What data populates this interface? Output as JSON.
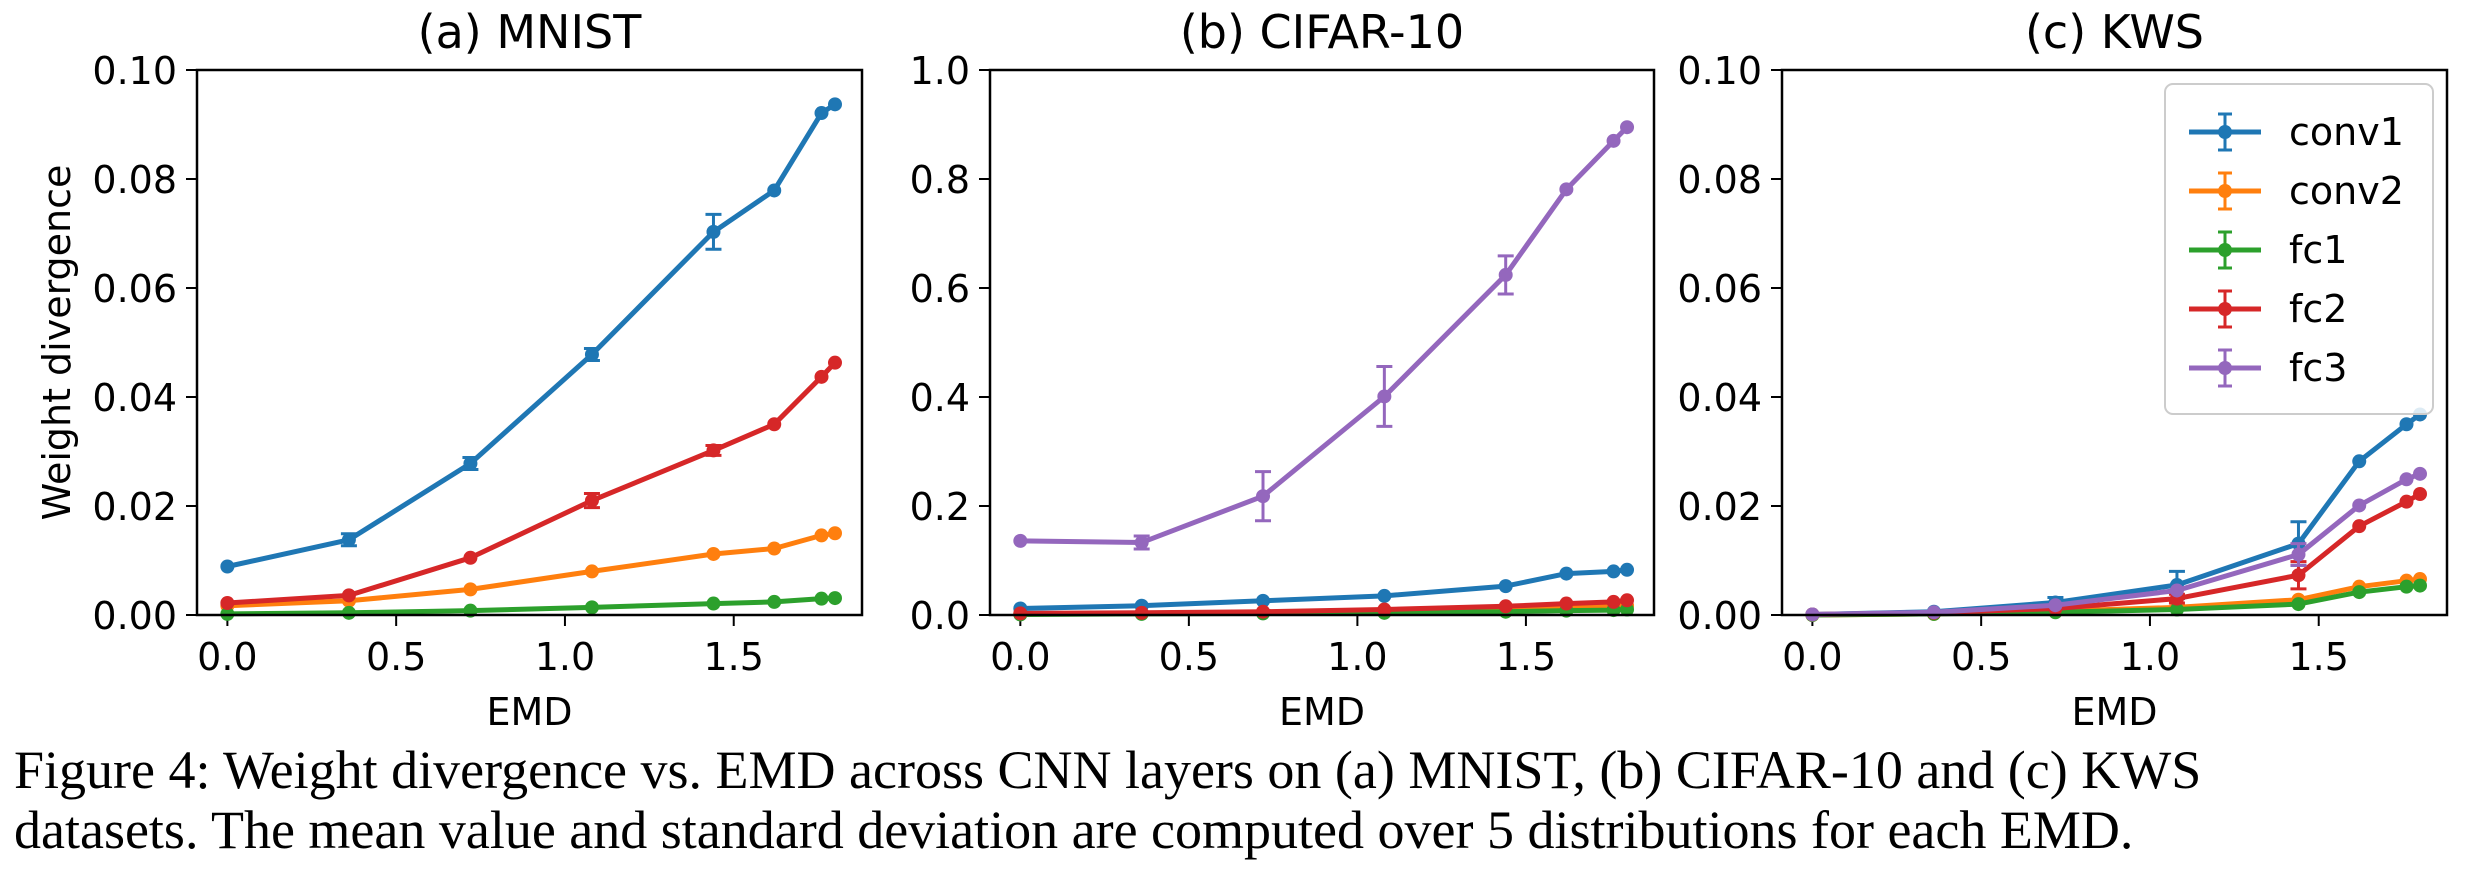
{
  "chart_data": [
    {
      "type": "line",
      "title": "(a) MNIST",
      "xlabel": "EMD",
      "ylabel": "Weight divergence",
      "xlim": [
        -0.09,
        1.88
      ],
      "ylim": [
        0,
        0.1
      ],
      "xticks": [
        0.0,
        0.5,
        1.0,
        1.5
      ],
      "xtick_labels": [
        "0.0",
        "0.5",
        "1.0",
        "1.5"
      ],
      "yticks": [
        0,
        0.02,
        0.04,
        0.06,
        0.08,
        0.1
      ],
      "ytick_labels": [
        "0.00",
        "0.02",
        "0.04",
        "0.06",
        "0.08",
        "0.10"
      ],
      "x": [
        0.0,
        0.36,
        0.72,
        1.08,
        1.44,
        1.62,
        1.76,
        1.8
      ],
      "series": [
        {
          "name": "conv1",
          "color": "#1f77b4",
          "values": [
            0.0089,
            0.0138,
            0.0278,
            0.0478,
            0.0703,
            0.0779,
            0.0921,
            0.0937
          ],
          "err": [
            0,
            0.0011,
            0.0011,
            0.0011,
            0.0032,
            0,
            0,
            0
          ]
        },
        {
          "name": "conv2",
          "color": "#ff7f0e",
          "values": [
            0.0017,
            0.0026,
            0.0047,
            0.008,
            0.0112,
            0.0122,
            0.0146,
            0.015
          ],
          "err": [
            0,
            0,
            0,
            0,
            0,
            0,
            0,
            0
          ]
        },
        {
          "name": "fc1",
          "color": "#2ca02c",
          "values": [
            0.0002,
            0.0004,
            0.0008,
            0.0014,
            0.0021,
            0.0024,
            0.003,
            0.0031
          ],
          "err": [
            0,
            0,
            0,
            0,
            0,
            0,
            0,
            0
          ]
        },
        {
          "name": "fc2",
          "color": "#d62728",
          "values": [
            0.0022,
            0.0036,
            0.0105,
            0.021,
            0.0302,
            0.035,
            0.0437,
            0.0463
          ],
          "err": [
            0,
            0,
            0,
            0.0013,
            0.0009,
            0,
            0,
            0
          ]
        }
      ]
    },
    {
      "type": "line",
      "title": "(b) CIFAR-10",
      "xlabel": "EMD",
      "ylabel": "",
      "xlim": [
        -0.09,
        1.88
      ],
      "ylim": [
        0,
        1.0
      ],
      "xticks": [
        0.0,
        0.5,
        1.0,
        1.5
      ],
      "xtick_labels": [
        "0.0",
        "0.5",
        "1.0",
        "1.5"
      ],
      "yticks": [
        0,
        0.2,
        0.4,
        0.6,
        0.8,
        1.0
      ],
      "ytick_labels": [
        "0.0",
        "0.2",
        "0.4",
        "0.6",
        "0.8",
        "1.0"
      ],
      "x": [
        0.0,
        0.36,
        0.72,
        1.08,
        1.44,
        1.62,
        1.76,
        1.8
      ],
      "series": [
        {
          "name": "conv1",
          "color": "#1f77b4",
          "values": [
            0.012,
            0.017,
            0.026,
            0.035,
            0.053,
            0.076,
            0.08,
            0.083
          ],
          "err": [
            0,
            0,
            0,
            0,
            0,
            0,
            0,
            0
          ]
        },
        {
          "name": "conv2",
          "color": "#ff7f0e",
          "values": [
            0.002,
            0.003,
            0.005,
            0.008,
            0.011,
            0.013,
            0.016,
            0.017
          ],
          "err": [
            0,
            0,
            0,
            0,
            0,
            0,
            0,
            0
          ]
        },
        {
          "name": "fc1",
          "color": "#2ca02c",
          "values": [
            0.001,
            0.002,
            0.003,
            0.004,
            0.006,
            0.008,
            0.009,
            0.01
          ],
          "err": [
            0,
            0,
            0,
            0,
            0,
            0,
            0,
            0
          ]
        },
        {
          "name": "fc2",
          "color": "#d62728",
          "values": [
            0.003,
            0.004,
            0.006,
            0.01,
            0.016,
            0.021,
            0.024,
            0.027
          ],
          "err": [
            0,
            0,
            0,
            0,
            0,
            0,
            0,
            0
          ]
        },
        {
          "name": "fc3",
          "color": "#9467bd",
          "values": [
            0.136,
            0.133,
            0.218,
            0.401,
            0.624,
            0.781,
            0.87,
            0.895
          ],
          "err": [
            0,
            0.012,
            0.045,
            0.055,
            0.035,
            0,
            0,
            0
          ]
        }
      ]
    },
    {
      "type": "line",
      "title": "(c) KWS",
      "xlabel": "EMD",
      "ylabel": "",
      "xlim": [
        -0.09,
        1.88
      ],
      "ylim": [
        0,
        0.1
      ],
      "xticks": [
        0.0,
        0.5,
        1.0,
        1.5
      ],
      "xtick_labels": [
        "0.0",
        "0.5",
        "1.0",
        "1.5"
      ],
      "yticks": [
        0,
        0.02,
        0.04,
        0.06,
        0.08,
        0.1
      ],
      "ytick_labels": [
        "0.00",
        "0.02",
        "0.04",
        "0.06",
        "0.08",
        "0.10"
      ],
      "x": [
        0.0,
        0.36,
        0.72,
        1.08,
        1.44,
        1.62,
        1.76,
        1.8
      ],
      "legend": "top-right",
      "series": [
        {
          "name": "conv1",
          "color": "#1f77b4",
          "values": [
            0.0001,
            0.0006,
            0.0023,
            0.0055,
            0.0131,
            0.0282,
            0.035,
            0.0368
          ],
          "err": [
            0,
            0,
            0.0009,
            0.0025,
            0.004,
            0,
            0,
            0
          ]
        },
        {
          "name": "conv2",
          "color": "#ff7f0e",
          "values": [
            0.0,
            0.0002,
            0.0007,
            0.0014,
            0.0028,
            0.0052,
            0.0063,
            0.0066
          ],
          "err": [
            0,
            0,
            0,
            0,
            0,
            0,
            0,
            0
          ]
        },
        {
          "name": "fc1",
          "color": "#2ca02c",
          "values": [
            0.0,
            0.0002,
            0.0005,
            0.001,
            0.002,
            0.0042,
            0.0052,
            0.0054
          ],
          "err": [
            0,
            0,
            0,
            0,
            0,
            0,
            0,
            0
          ]
        },
        {
          "name": "fc2",
          "color": "#d62728",
          "values": [
            0.0001,
            0.0004,
            0.0012,
            0.003,
            0.0073,
            0.0163,
            0.0208,
            0.0222
          ],
          "err": [
            0,
            0,
            0,
            0.0008,
            0.0025,
            0,
            0,
            0
          ]
        },
        {
          "name": "fc3",
          "color": "#9467bd",
          "values": [
            0.0001,
            0.0005,
            0.0018,
            0.0045,
            0.0111,
            0.0201,
            0.0249,
            0.0259
          ],
          "err": [
            0,
            0,
            0,
            0,
            0.002,
            0,
            0,
            0
          ]
        }
      ]
    }
  ],
  "caption": {
    "line1": "Figure 4: Weight divergence vs. EMD across CNN layers on (a) MNIST, (b) CIFAR-10 and (c) KWS",
    "line2": "datasets. The mean value and standard deviation are computed over 5 distributions for each EMD."
  }
}
